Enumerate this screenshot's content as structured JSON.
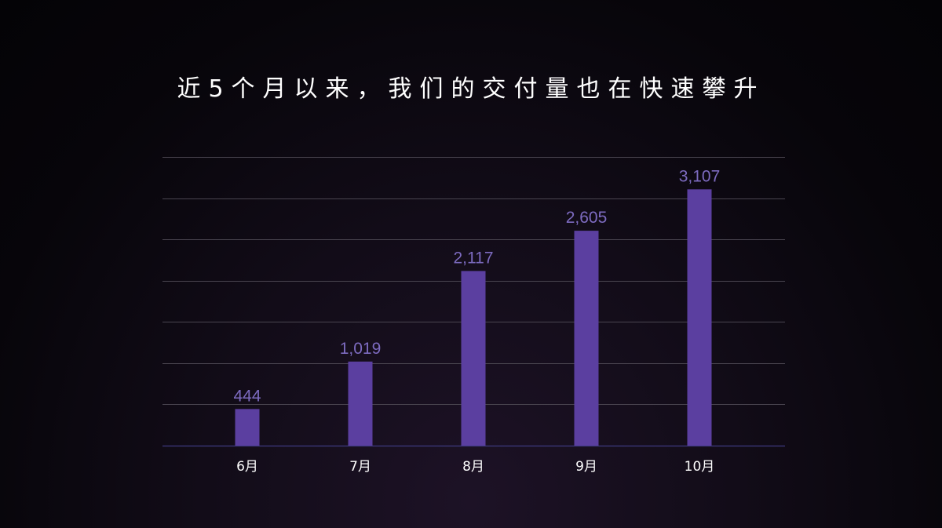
{
  "title": "近5个月以来，我们的交付量也在快速攀升",
  "chart_data": {
    "type": "bar",
    "categories": [
      "6月",
      "7月",
      "8月",
      "9月",
      "10月"
    ],
    "values": [
      444,
      1019,
      2117,
      2605,
      3107
    ],
    "value_labels": [
      "444",
      "1,019",
      "2,117",
      "2,605",
      "3,107"
    ],
    "ylim": [
      0,
      3500
    ],
    "gridline_step": 500,
    "grid": true,
    "legend": "none",
    "colors": {
      "bar": "#5b3fa0",
      "data_label": "#7d6bc0",
      "tick_label": "#ffffff",
      "gridline": "#4a4550",
      "title": "#ffffff"
    }
  }
}
